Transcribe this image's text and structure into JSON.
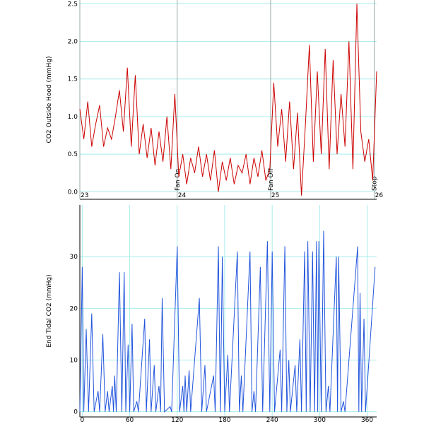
{
  "chart_data": [
    {
      "type": "line",
      "ylabel": "CO2 Outside Hood (mmHg)",
      "color": "#cc0000",
      "xlim": [
        -3,
        372
      ],
      "ylim": [
        -0.1,
        2.55
      ],
      "yticks": [
        {
          "value": 0,
          "label": "0.0"
        },
        0.5,
        {
          "value": 1,
          "label": "1.0"
        },
        1.5,
        {
          "value": 2,
          "label": "2.0"
        },
        2.5
      ],
      "grid": true,
      "events": [
        {
          "x": -3,
          "label": "23"
        },
        {
          "x": 120,
          "label": "24",
          "note": "Fan On"
        },
        {
          "x": 238,
          "label": "25",
          "note": "Fan Off"
        },
        {
          "x": 369,
          "label": "26",
          "note": "Stop"
        }
      ],
      "x": [
        -3,
        2,
        7,
        12,
        17,
        22,
        27,
        32,
        37,
        42,
        47,
        52,
        57,
        62,
        67,
        72,
        77,
        82,
        87,
        92,
        97,
        102,
        107,
        112,
        117,
        122,
        127,
        132,
        137,
        142,
        147,
        152,
        157,
        162,
        167,
        172,
        177,
        182,
        187,
        192,
        197,
        202,
        207,
        212,
        217,
        222,
        227,
        232,
        237,
        242,
        247,
        252,
        257,
        262,
        267,
        272,
        277,
        282,
        287,
        292,
        297,
        302,
        307,
        312,
        317,
        322,
        327,
        332,
        337,
        342,
        347,
        352,
        357,
        362,
        367,
        372
      ],
      "values": [
        1.1,
        0.7,
        1.2,
        0.6,
        0.9,
        1.15,
        0.6,
        0.85,
        0.7,
        1.0,
        1.35,
        0.8,
        1.65,
        0.6,
        1.55,
        0.5,
        0.9,
        0.45,
        0.85,
        0.35,
        0.8,
        0.4,
        1.0,
        0.3,
        1.3,
        0.2,
        0.5,
        0.1,
        0.45,
        0.25,
        0.6,
        0.2,
        0.5,
        0.15,
        0.55,
        0.0,
        0.4,
        0.15,
        0.45,
        0.1,
        0.35,
        0.25,
        0.5,
        0.1,
        0.45,
        0.2,
        0.55,
        0.15,
        0.3,
        1.45,
        0.6,
        1.1,
        0.4,
        1.2,
        0.3,
        1.05,
        -0.05,
        0.9,
        1.95,
        0.4,
        1.6,
        0.5,
        1.9,
        0.3,
        1.75,
        0.5,
        1.3,
        0.6,
        2.0,
        0.3,
        2.5,
        0.8,
        0.4,
        0.7,
        0.15,
        1.6
      ]
    },
    {
      "type": "line",
      "ylabel": "End Tidal CO2 (mmHg)",
      "color": "#2255dd",
      "xlim": [
        -3,
        372
      ],
      "ylim": [
        -1,
        40
      ],
      "yticks": [
        0,
        10,
        20,
        30
      ],
      "xticks": [
        0,
        60,
        120,
        180,
        240,
        300,
        360
      ],
      "grid": true,
      "x": [
        -3,
        0,
        2,
        5,
        8,
        12,
        15,
        20,
        22,
        26,
        29,
        32,
        34,
        38,
        39.5,
        41,
        43,
        47,
        50,
        53,
        55,
        58,
        60,
        63,
        65,
        69,
        71,
        79,
        81,
        85,
        87,
        91,
        93,
        97,
        99,
        101,
        104,
        111,
        113,
        120,
        123,
        127,
        128.5,
        130,
        132,
        135,
        137,
        148,
        151,
        155,
        157,
        166,
        168,
        172,
        174.5,
        177,
        180,
        184,
        186,
        196,
        198.5,
        201,
        203,
        212,
        214.5,
        217,
        219,
        225,
        228,
        234,
        237,
        240,
        243,
        250,
        252,
        256,
        258.5,
        261,
        263,
        269,
        271,
        275,
        277,
        281,
        283,
        285,
        288,
        291,
        293.5,
        296,
        297.5,
        299,
        302,
        305,
        308,
        311,
        313,
        321,
        322.5,
        324,
        327,
        330,
        332,
        348,
        349.5,
        351,
        353,
        356,
        358,
        370
      ],
      "values": [
        0,
        28,
        0,
        16,
        0,
        19,
        0,
        4,
        0,
        15,
        0,
        4,
        0,
        5,
        0,
        7,
        0,
        27,
        0,
        27,
        0,
        13,
        0,
        17,
        0,
        2,
        0,
        18,
        0,
        14,
        0,
        9,
        0,
        5,
        0,
        22,
        0,
        1,
        0,
        32,
        0,
        5,
        0,
        7,
        0,
        8,
        0,
        22,
        0,
        9,
        0,
        7,
        0,
        32,
        0,
        30,
        0,
        11,
        0,
        31,
        0,
        7,
        0,
        31,
        0,
        4,
        0,
        28,
        0,
        33,
        0,
        31,
        0,
        12,
        0,
        32,
        0,
        10,
        0,
        9,
        0,
        14,
        0,
        31,
        0,
        33,
        0,
        31,
        0,
        33,
        0,
        33,
        0,
        35,
        0,
        5,
        0,
        30,
        0,
        30,
        0,
        2,
        0,
        32,
        0,
        23,
        0,
        18,
        0,
        28
      ]
    }
  ]
}
